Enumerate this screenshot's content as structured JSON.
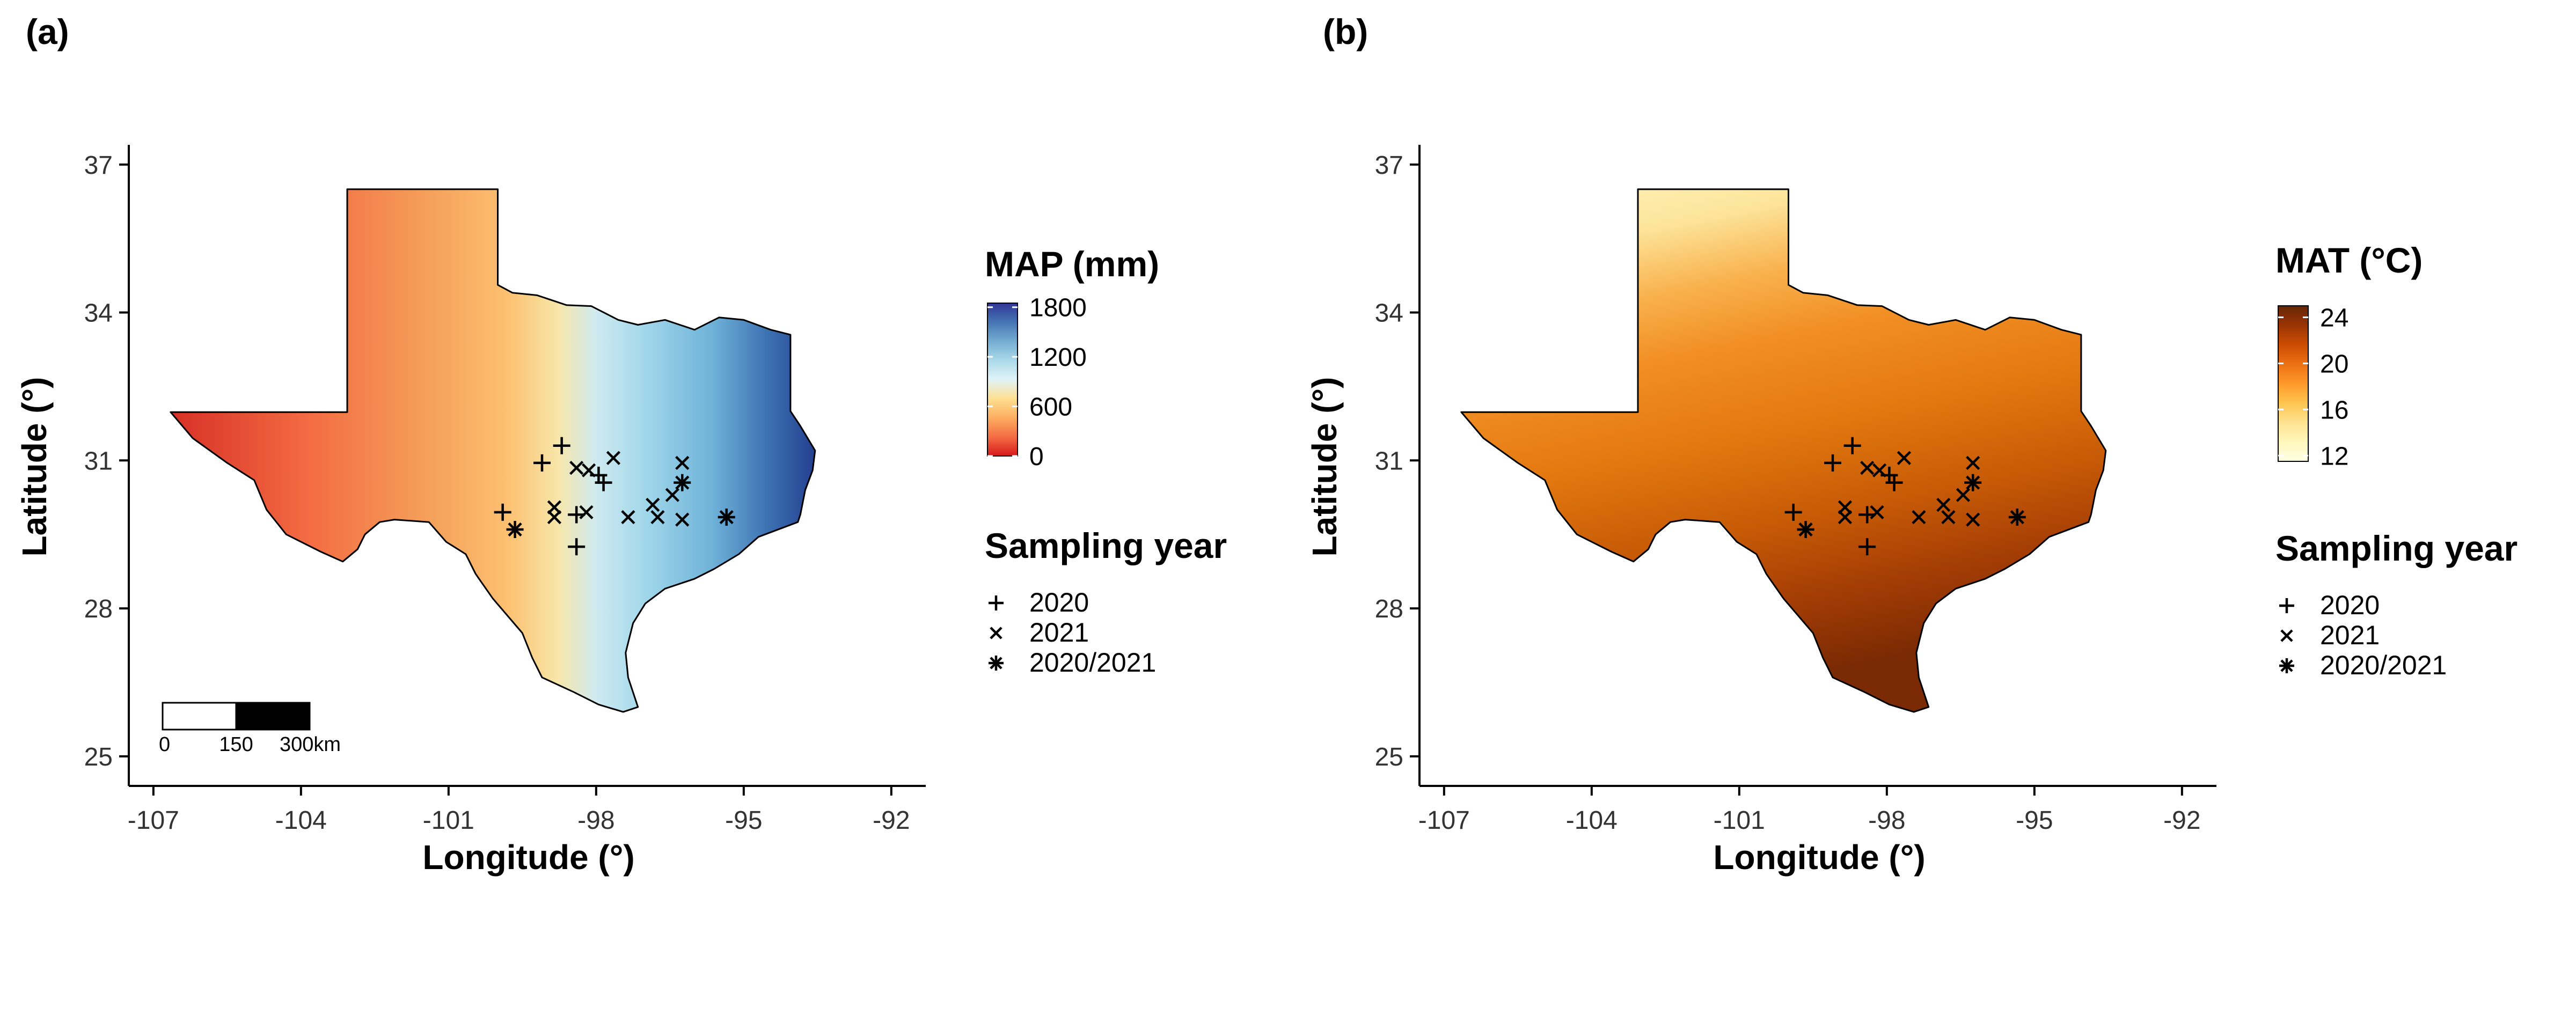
{
  "panels": [
    {
      "id": "a",
      "label": "(a)",
      "xlabel": "Longitude (°)",
      "ylabel": "Latitude (°)",
      "legend_title": "MAP (mm)",
      "legend_ticks": [
        "1800",
        "1200",
        "600",
        "0"
      ],
      "legend_tick_values": [
        1800,
        1200,
        600,
        0
      ],
      "legend_range": [
        0,
        1850
      ],
      "legend_colors": [
        "#d7191c",
        "#f46d43",
        "#fdae61",
        "#fee090",
        "#e0f3f8",
        "#abd9e9",
        "#74add1",
        "#4575b4",
        "#313695"
      ],
      "scale_bar": [
        "0",
        "150",
        "300km"
      ]
    },
    {
      "id": "b",
      "label": "(b)",
      "xlabel": "Longitude (°)",
      "ylabel": "Latitude (°)",
      "legend_title": "MAT (°C)",
      "legend_ticks": [
        "24",
        "20",
        "16",
        "12"
      ],
      "legend_tick_values": [
        24,
        20,
        16,
        12
      ],
      "legend_range": [
        11.5,
        25
      ],
      "legend_colors": [
        "#ffffe5",
        "#fff7bc",
        "#fee391",
        "#fec44f",
        "#fe9929",
        "#ec7014",
        "#cc4c02",
        "#993404",
        "#662506"
      ]
    }
  ],
  "axes": {
    "x_ticks": [
      -107,
      -104,
      -101,
      -98,
      -95,
      -92
    ],
    "x_tick_labels": [
      "-107",
      "-104",
      "-101",
      "-98",
      "-95",
      "-92"
    ],
    "y_ticks": [
      25,
      28,
      31,
      34,
      37
    ],
    "y_tick_labels": [
      "25",
      "28",
      "31",
      "34",
      "37"
    ],
    "xlim": [
      -107.5,
      -91.3
    ],
    "ylim": [
      24.4,
      37.4
    ]
  },
  "sampling_legend": {
    "title": "Sampling year",
    "entries": [
      {
        "symbol": "+",
        "label": "2020"
      },
      {
        "symbol": "×",
        "label": "2021"
      },
      {
        "symbol": "*",
        "label": "2020/2021"
      }
    ]
  },
  "sites": [
    {
      "lon": -99.9,
      "lat": 29.95,
      "year": "2020"
    },
    {
      "lon": -99.1,
      "lat": 30.95,
      "year": "2020"
    },
    {
      "lon": -98.7,
      "lat": 31.3,
      "year": "2020"
    },
    {
      "lon": -98.4,
      "lat": 29.9,
      "year": "2020"
    },
    {
      "lon": -98.4,
      "lat": 29.25,
      "year": "2020"
    },
    {
      "lon": -97.95,
      "lat": 30.7,
      "year": "2020"
    },
    {
      "lon": -97.85,
      "lat": 30.55,
      "year": "2020"
    },
    {
      "lon": -98.85,
      "lat": 30.05,
      "year": "2021"
    },
    {
      "lon": -98.85,
      "lat": 29.85,
      "year": "2021"
    },
    {
      "lon": -98.4,
      "lat": 30.85,
      "year": "2021"
    },
    {
      "lon": -98.15,
      "lat": 30.8,
      "year": "2021"
    },
    {
      "lon": -98.2,
      "lat": 29.95,
      "year": "2021"
    },
    {
      "lon": -97.65,
      "lat": 31.05,
      "year": "2021"
    },
    {
      "lon": -97.35,
      "lat": 29.85,
      "year": "2021"
    },
    {
      "lon": -96.85,
      "lat": 30.1,
      "year": "2021"
    },
    {
      "lon": -96.75,
      "lat": 29.85,
      "year": "2021"
    },
    {
      "lon": -96.45,
      "lat": 30.3,
      "year": "2021"
    },
    {
      "lon": -96.25,
      "lat": 30.95,
      "year": "2021"
    },
    {
      "lon": -96.25,
      "lat": 29.8,
      "year": "2021"
    },
    {
      "lon": -99.65,
      "lat": 29.6,
      "year": "2020/2021"
    },
    {
      "lon": -96.25,
      "lat": 30.55,
      "year": "2020/2021"
    },
    {
      "lon": -95.35,
      "lat": 29.85,
      "year": "2020/2021"
    }
  ],
  "texas_outline": [
    [
      -106.65,
      31.98
    ],
    [
      -103.06,
      31.98
    ],
    [
      -103.06,
      36.5
    ],
    [
      -100.0,
      36.5
    ],
    [
      -100.0,
      34.56
    ],
    [
      -99.7,
      34.4
    ],
    [
      -99.2,
      34.35
    ],
    [
      -98.6,
      34.15
    ],
    [
      -98.1,
      34.13
    ],
    [
      -97.55,
      33.85
    ],
    [
      -97.15,
      33.75
    ],
    [
      -96.6,
      33.85
    ],
    [
      -96.0,
      33.65
    ],
    [
      -95.5,
      33.9
    ],
    [
      -95.0,
      33.85
    ],
    [
      -94.45,
      33.65
    ],
    [
      -94.05,
      33.55
    ],
    [
      -94.05,
      32.0
    ],
    [
      -93.85,
      31.7
    ],
    [
      -93.55,
      31.2
    ],
    [
      -93.6,
      30.8
    ],
    [
      -93.75,
      30.4
    ],
    [
      -93.85,
      29.9
    ],
    [
      -93.9,
      29.75
    ],
    [
      -94.7,
      29.45
    ],
    [
      -95.1,
      29.1
    ],
    [
      -95.6,
      28.8
    ],
    [
      -96.0,
      28.6
    ],
    [
      -96.6,
      28.4
    ],
    [
      -97.0,
      28.1
    ],
    [
      -97.25,
      27.7
    ],
    [
      -97.4,
      27.1
    ],
    [
      -97.35,
      26.6
    ],
    [
      -97.15,
      26.0
    ],
    [
      -97.45,
      25.9
    ],
    [
      -97.95,
      26.05
    ],
    [
      -98.45,
      26.3
    ],
    [
      -99.1,
      26.6
    ],
    [
      -99.3,
      27.0
    ],
    [
      -99.5,
      27.5
    ],
    [
      -100.1,
      28.2
    ],
    [
      -100.45,
      28.7
    ],
    [
      -100.65,
      29.1
    ],
    [
      -101.05,
      29.35
    ],
    [
      -101.4,
      29.75
    ],
    [
      -102.1,
      29.8
    ],
    [
      -102.4,
      29.75
    ],
    [
      -102.7,
      29.5
    ],
    [
      -102.85,
      29.2
    ],
    [
      -103.15,
      28.95
    ],
    [
      -103.6,
      29.15
    ],
    [
      -104.3,
      29.5
    ],
    [
      -104.7,
      30.0
    ],
    [
      -104.95,
      30.6
    ],
    [
      -105.5,
      30.95
    ],
    [
      -106.2,
      31.45
    ]
  ]
}
